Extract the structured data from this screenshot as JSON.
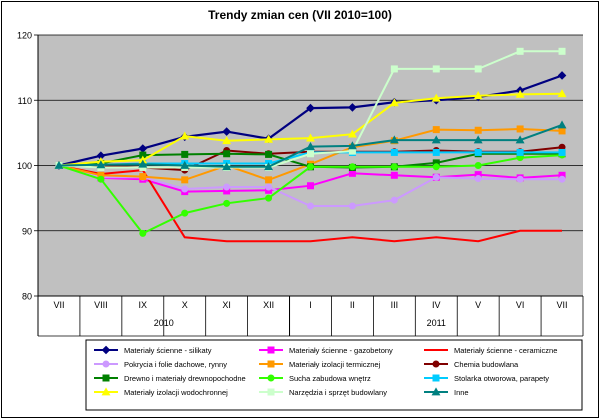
{
  "chart_data": {
    "type": "line",
    "title": "Trendy zmian cen (VII 2010=100)",
    "xlabel": "",
    "ylabel": "",
    "ylim": [
      80,
      120
    ],
    "yticks": [
      80,
      90,
      100,
      110,
      120
    ],
    "grid": true,
    "legend_position": "bottom",
    "categories": [
      "VII",
      "VIII",
      "IX",
      "X",
      "XI",
      "XII",
      "I",
      "II",
      "III",
      "IV",
      "V",
      "VI",
      "VII"
    ],
    "year_groups": [
      {
        "label": "2010",
        "start": 0,
        "end": 5
      },
      {
        "label": "2011",
        "start": 6,
        "end": 12
      }
    ],
    "series": [
      {
        "name": "Materiały ścienne - silikaty",
        "color": "#000080",
        "marker": "diamond",
        "values": [
          100,
          101.5,
          102.6,
          104.4,
          105.2,
          104.1,
          108.8,
          108.9,
          109.7,
          110.0,
          110.5,
          111.5,
          113.8
        ]
      },
      {
        "name": "Materiały ścienne - gazobetony",
        "color": "#ff00ff",
        "marker": "square",
        "values": [
          100,
          98.1,
          97.9,
          96.0,
          96.1,
          96.2,
          96.9,
          98.8,
          98.5,
          98.2,
          98.6,
          98.1,
          98.5
        ]
      },
      {
        "name": "Materiały ścienne - ceramiczne",
        "color": "#ff0000",
        "marker": "none",
        "values": [
          100,
          98.7,
          99.3,
          89.0,
          88.4,
          88.4,
          88.4,
          89.0,
          88.4,
          89.0,
          88.4,
          90.0,
          90.0
        ]
      },
      {
        "name": "Pokrycia i folie dachowe, rynny",
        "color": "#cc99ff",
        "marker": "circle",
        "values": [
          100,
          98.2,
          98.2,
          96.4,
          96.7,
          96.7,
          93.8,
          93.8,
          94.7,
          98.2,
          98.0,
          97.9,
          97.9
        ]
      },
      {
        "name": "Materiały izolacji termicznej",
        "color": "#ff9900",
        "marker": "square",
        "values": [
          100,
          98.5,
          98.3,
          97.8,
          100.0,
          97.8,
          100.2,
          102.8,
          103.8,
          105.5,
          105.4,
          105.6,
          105.3
        ]
      },
      {
        "name": "Chemia budowlana",
        "color": "#800000",
        "marker": "circle",
        "values": [
          100,
          99.9,
          99.7,
          99.3,
          102.3,
          101.8,
          102.1,
          102.1,
          102.1,
          102.3,
          102.1,
          102.1,
          102.8
        ]
      },
      {
        "name": "Drewno i materiały drewnopochodne",
        "color": "#008000",
        "marker": "square",
        "values": [
          100,
          100.3,
          101.6,
          101.7,
          101.8,
          101.7,
          99.8,
          99.7,
          99.8,
          100.4,
          101.8,
          101.8,
          101.8
        ]
      },
      {
        "name": "Sucha zabudowa wnętrz",
        "color": "#33ff00",
        "marker": "circle",
        "values": [
          100,
          97.9,
          89.6,
          92.7,
          94.2,
          95.0,
          99.8,
          99.8,
          99.8,
          99.8,
          100.0,
          101.2,
          101.6
        ]
      },
      {
        "name": "Stolarka otworowa, parapety",
        "color": "#00ccff",
        "marker": "square",
        "values": [
          100,
          100.1,
          100.3,
          100.3,
          100.3,
          100.3,
          102.0,
          102.0,
          102.0,
          102.0,
          102.0,
          102.0,
          102.0
        ]
      },
      {
        "name": "Materiały izolacji wodochronnej",
        "color": "#ffff00",
        "marker": "triangle",
        "values": [
          100,
          100.6,
          100.8,
          104.5,
          103.8,
          104.0,
          104.2,
          104.8,
          109.6,
          110.3,
          110.7,
          110.9,
          111.0
        ]
      },
      {
        "name": "Narzędzia i sprzęt budowlany",
        "color": "#ccffcc",
        "marker": "square",
        "values": [
          100,
          99.7,
          99.7,
          99.7,
          99.7,
          99.7,
          101.8,
          102.2,
          114.8,
          114.8,
          114.8,
          117.5,
          117.5
        ]
      },
      {
        "name": "Inne",
        "color": "#008080",
        "marker": "triangle",
        "values": [
          100,
          100.1,
          100.2,
          100.0,
          99.8,
          99.8,
          102.9,
          103.0,
          103.9,
          103.9,
          103.9,
          103.9,
          106.2
        ]
      }
    ]
  }
}
